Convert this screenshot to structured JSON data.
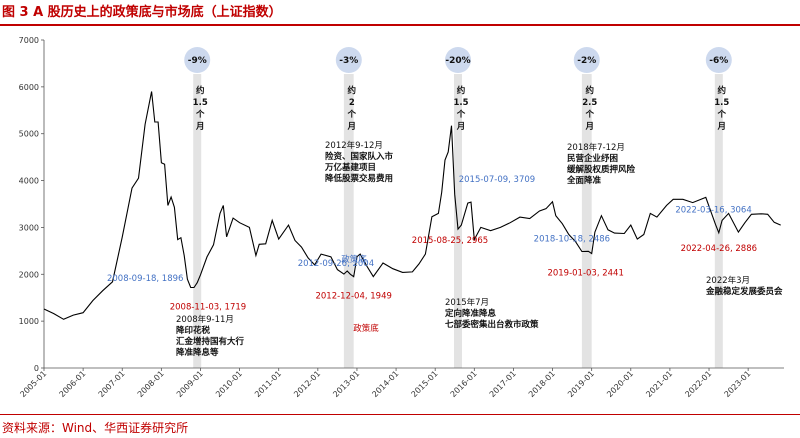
{
  "header": {
    "title": "图 3 A 股历史上的政策底与市场底（上证指数）"
  },
  "footer": {
    "source": "资料来源：Wind、华西证券研究所"
  },
  "chart_data": {
    "type": "line",
    "title": "图 3 A 股历史上的政策底与市场底（上证指数）",
    "xlabel": "",
    "ylabel": "",
    "ylim": [
      0,
      7000
    ],
    "xlim": [
      "2005-01",
      "2023-12"
    ],
    "yticks": [
      0,
      1000,
      2000,
      3000,
      4000,
      5000,
      6000,
      7000
    ],
    "xticks": [
      "2005-01",
      "2006-01",
      "2007-01",
      "2008-01",
      "2009-01",
      "2010-01",
      "2011-01",
      "2012-01",
      "2013-01",
      "2014-01",
      "2015-01",
      "2016-01",
      "2017-01",
      "2018-01",
      "2019-01",
      "2020-01",
      "2021-01",
      "2022-01",
      "2023-01"
    ],
    "grid": false,
    "legend": "none",
    "series": [
      {
        "color": "#000000",
        "points": [
          [
            "2005-01",
            1260
          ],
          [
            "2005-04",
            1160
          ],
          [
            "2005-07",
            1040
          ],
          [
            "2005-10",
            1130
          ],
          [
            "2006-01",
            1180
          ],
          [
            "2006-04",
            1440
          ],
          [
            "2006-07",
            1650
          ],
          [
            "2006-10",
            1840
          ],
          [
            "2007-01",
            2790
          ],
          [
            "2007-04",
            3840
          ],
          [
            "2007-06",
            4050
          ],
          [
            "2007-08",
            5200
          ],
          [
            "2007-10",
            5900
          ],
          [
            "2007-11",
            5250
          ],
          [
            "2007-12",
            5250
          ],
          [
            "2008-01",
            4380
          ],
          [
            "2008-02",
            4350
          ],
          [
            "2008-03",
            3470
          ],
          [
            "2008-04",
            3650
          ],
          [
            "2008-05",
            3430
          ],
          [
            "2008-06",
            2740
          ],
          [
            "2008-07",
            2780
          ],
          [
            "2008-08",
            2400
          ],
          [
            "2008-09",
            1896
          ],
          [
            "2008-10",
            1720
          ],
          [
            "2008-11",
            1719
          ],
          [
            "2008-12",
            1820
          ],
          [
            "2009-01",
            1990
          ],
          [
            "2009-03",
            2370
          ],
          [
            "2009-05",
            2630
          ],
          [
            "2009-07",
            3300
          ],
          [
            "2009-08",
            3470
          ],
          [
            "2009-09",
            2800
          ],
          [
            "2009-11",
            3200
          ],
          [
            "2010-01",
            3100
          ],
          [
            "2010-04",
            3000
          ],
          [
            "2010-06",
            2400
          ],
          [
            "2010-07",
            2640
          ],
          [
            "2010-09",
            2650
          ],
          [
            "2010-11",
            3150
          ],
          [
            "2011-01",
            2750
          ],
          [
            "2011-04",
            3050
          ],
          [
            "2011-06",
            2720
          ],
          [
            "2011-08",
            2580
          ],
          [
            "2011-10",
            2350
          ],
          [
            "2011-12",
            2200
          ],
          [
            "2012-02",
            2430
          ],
          [
            "2012-05",
            2370
          ],
          [
            "2012-07",
            2100
          ],
          [
            "2012-09",
            2004
          ],
          [
            "2012-10",
            2070
          ],
          [
            "2012-11",
            2000
          ],
          [
            "2012-12",
            1949
          ],
          [
            "2013-01",
            2380
          ],
          [
            "2013-02",
            2430
          ],
          [
            "2013-04",
            2180
          ],
          [
            "2013-06",
            1950
          ],
          [
            "2013-09",
            2240
          ],
          [
            "2013-12",
            2120
          ],
          [
            "2014-03",
            2040
          ],
          [
            "2014-06",
            2050
          ],
          [
            "2014-08",
            2220
          ],
          [
            "2014-10",
            2430
          ],
          [
            "2014-12",
            3230
          ],
          [
            "2015-02",
            3300
          ],
          [
            "2015-03",
            3750
          ],
          [
            "2015-04",
            4440
          ],
          [
            "2015-05",
            4610
          ],
          [
            "2015-06",
            5170
          ],
          [
            "2015-07",
            3709
          ],
          [
            "2015-08",
            2965
          ],
          [
            "2015-09",
            3050
          ],
          [
            "2015-11",
            3520
          ],
          [
            "2015-12",
            3540
          ],
          [
            "2016-01",
            2740
          ],
          [
            "2016-03",
            3000
          ],
          [
            "2016-06",
            2930
          ],
          [
            "2016-09",
            3000
          ],
          [
            "2016-12",
            3100
          ],
          [
            "2017-03",
            3220
          ],
          [
            "2017-06",
            3190
          ],
          [
            "2017-09",
            3350
          ],
          [
            "2017-11",
            3400
          ],
          [
            "2018-01",
            3550
          ],
          [
            "2018-02",
            3250
          ],
          [
            "2018-04",
            3080
          ],
          [
            "2018-06",
            2850
          ],
          [
            "2018-08",
            2700
          ],
          [
            "2018-10",
            2486
          ],
          [
            "2018-12",
            2490
          ],
          [
            "2019-01",
            2441
          ],
          [
            "2019-02",
            2900
          ],
          [
            "2019-04",
            3250
          ],
          [
            "2019-06",
            2950
          ],
          [
            "2019-08",
            2880
          ],
          [
            "2019-11",
            2870
          ],
          [
            "2020-01",
            3050
          ],
          [
            "2020-03",
            2750
          ],
          [
            "2020-05",
            2850
          ],
          [
            "2020-07",
            3300
          ],
          [
            "2020-09",
            3220
          ],
          [
            "2020-12",
            3470
          ],
          [
            "2021-02",
            3600
          ],
          [
            "2021-05",
            3600
          ],
          [
            "2021-08",
            3530
          ],
          [
            "2021-12",
            3640
          ],
          [
            "2022-01",
            3450
          ],
          [
            "2022-03",
            3064
          ],
          [
            "2022-04",
            2886
          ],
          [
            "2022-05",
            3150
          ],
          [
            "2022-07",
            3300
          ],
          [
            "2022-10",
            2900
          ],
          [
            "2022-12",
            3100
          ],
          [
            "2023-02",
            3280
          ],
          [
            "2023-05",
            3290
          ],
          [
            "2023-07",
            3280
          ],
          [
            "2023-09",
            3110
          ],
          [
            "2023-11",
            3050
          ]
        ]
      }
    ],
    "bands": [
      {
        "id": "b1",
        "from": "2008-11",
        "to": "2009-01",
        "badge": "-9%",
        "duration": "约1.5个月"
      },
      {
        "id": "b2",
        "from": "2012-09",
        "to": "2012-12",
        "badge": "-3%",
        "duration": "约2个月"
      },
      {
        "id": "b3",
        "from": "2015-07",
        "to": "2015-09",
        "badge": "-20%",
        "duration": "约1.5个月"
      },
      {
        "id": "b4",
        "from": "2018-10",
        "to": "2019-01",
        "badge": "-2%",
        "duration": "约2.5个月"
      },
      {
        "id": "b5",
        "from": "2022-03",
        "to": "2022-05",
        "badge": "-6%",
        "duration": "约1.5个月"
      }
    ],
    "point_labels": [
      {
        "id": "pl1",
        "x": "2008-09",
        "y": 1896,
        "text": "2008-09-18, 1896",
        "color": "#4472c4",
        "anchor": "end"
      },
      {
        "id": "pl2",
        "x": "2008-11",
        "y": 1719,
        "text": "2008-11-03, 1719",
        "color": "#c00000",
        "anchor": "middle"
      },
      {
        "id": "pl3",
        "x": "2012-09",
        "y": 2004,
        "text": "2012-09-26, 2004",
        "color": "#4472c4",
        "anchor": "middle"
      },
      {
        "id": "pl4",
        "x": "2012-12",
        "y": 1949,
        "text": "2012-12-04, 1949",
        "color": "#c00000",
        "anchor": "middle"
      },
      {
        "id": "pl5",
        "x": "2015-07",
        "y": 3709,
        "text": "2015-07-09, 3709",
        "color": "#4472c4",
        "anchor": "start"
      },
      {
        "id": "pl6",
        "x": "2015-08",
        "y": 2965,
        "text": "2015-08-25, 2965",
        "color": "#c00000",
        "anchor": "middle"
      },
      {
        "id": "pl7",
        "x": "2018-10",
        "y": 2486,
        "text": "2018-10-18, 2486",
        "color": "#4472c4",
        "anchor": "middle"
      },
      {
        "id": "pl8",
        "x": "2019-01",
        "y": 2441,
        "text": "2019-01-03, 2441",
        "color": "#c00000",
        "anchor": "middle"
      },
      {
        "id": "pl9",
        "x": "2022-03",
        "y": 3064,
        "text": "2022-03-16, 3064",
        "color": "#4472c4",
        "anchor": "middle"
      },
      {
        "id": "pl10",
        "x": "2022-04",
        "y": 2886,
        "text": "2022-04-26, 2886",
        "color": "#c00000",
        "anchor": "middle"
      }
    ],
    "annotations": [
      {
        "id": "an1",
        "lines": [
          "2008年9-11月",
          "降印花税",
          "汇金增持国有大行",
          "降准降息等"
        ]
      },
      {
        "id": "an2",
        "lines": [
          "2012年9-12月",
          "险资、国家队入市",
          "万亿基建项目",
          "降低股票交易费用"
        ]
      },
      {
        "id": "an3",
        "lines": [
          "政策底"
        ]
      },
      {
        "id": "an4",
        "lines": [
          "政策底"
        ]
      },
      {
        "id": "an5",
        "lines": [
          "2015年7月",
          "定向降准降息",
          "七部委密集出台救市政策"
        ]
      },
      {
        "id": "an6",
        "lines": [
          "2018年7-12月",
          "民营企业纾困",
          "缓解股权质押风险",
          "全面降准"
        ]
      },
      {
        "id": "an7",
        "lines": [
          "2022年3月",
          "金融稳定发展委员会"
        ]
      }
    ]
  }
}
